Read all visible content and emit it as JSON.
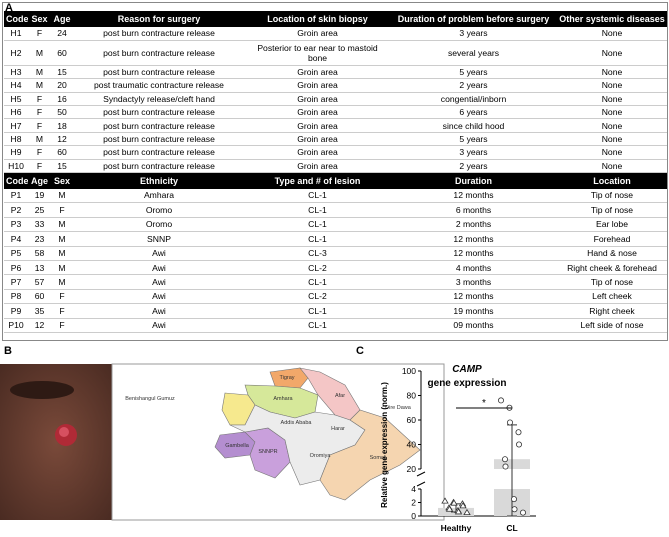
{
  "panels": {
    "a": "A",
    "b": "B",
    "c": "C"
  },
  "tables": [
    {
      "columns": [
        "Code",
        "Sex",
        "Age",
        "Reason for surgery",
        "Location of skin biopsy",
        "Duration of problem before surgery",
        "Other systemic diseases"
      ],
      "rows": [
        [
          "H1",
          "F",
          "24",
          "post burn contracture release",
          "Groin area",
          "3 years",
          "None"
        ],
        [
          "H2",
          "M",
          "60",
          "post burn contracture release",
          "Posterior to ear near to mastoid bone",
          "several years",
          "None"
        ],
        [
          "H3",
          "M",
          "15",
          "post burn contracture release",
          "Groin area",
          "5 years",
          "None"
        ],
        [
          "H4",
          "M",
          "20",
          "post traumatic contracture release",
          "Groin area",
          "2 years",
          "None"
        ],
        [
          "H5",
          "F",
          "16",
          "Syndactyly release/cleft hand",
          "Groin area",
          "congential/inborn",
          "None"
        ],
        [
          "H6",
          "F",
          "50",
          "post burn contracture release",
          "Groin area",
          "6 years",
          "None"
        ],
        [
          "H7",
          "F",
          "18",
          "post burn contracture release",
          "Groin area",
          "since child hood",
          "None"
        ],
        [
          "H8",
          "M",
          "12",
          "post burn contracture release",
          "Groin area",
          "5 years",
          "None"
        ],
        [
          "H9",
          "F",
          "60",
          "post burn contracture release",
          "Groin area",
          "3 years",
          "None"
        ],
        [
          "H10",
          "F",
          "15",
          "post burn contracture release",
          "Groin area",
          "2  years",
          "None"
        ]
      ]
    },
    {
      "columns": [
        "Code",
        "Age",
        "Sex",
        "Ethnicity",
        "Type  and # of lesion",
        "Duration",
        "Location"
      ],
      "rows": [
        [
          "P1",
          "19",
          "M",
          "Amhara",
          "CL-1",
          "12 months",
          "Tip of nose"
        ],
        [
          "P2",
          "25",
          "F",
          "Oromo",
          "CL-1",
          "6 months",
          "Tip of nose"
        ],
        [
          "P3",
          "33",
          "M",
          "Oromo",
          "CL-1",
          "2 months",
          "Ear lobe"
        ],
        [
          "P4",
          "23",
          "M",
          "SNNP",
          "CL-1",
          "12 months",
          "Forehead"
        ],
        [
          "P5",
          "58",
          "M",
          "Awi",
          "CL-3",
          "12 months",
          "Hand & nose"
        ],
        [
          "P6",
          "13",
          "M",
          "Awi",
          "CL-2",
          "4 months",
          "Right cheek &  forehead"
        ],
        [
          "P7",
          "57",
          "M",
          "Awi",
          "CL-1",
          "3 months",
          "Tip of nose"
        ],
        [
          "P8",
          "60",
          "F",
          "Awi",
          "CL-2",
          "12 months",
          "Left cheek"
        ],
        [
          "P9",
          "35",
          "F",
          "Awi",
          "CL-1",
          "19 months",
          "Right cheek"
        ],
        [
          "P10",
          "12",
          "F",
          "Awi",
          "CL-1",
          "09 months",
          "Left side of nose"
        ]
      ]
    }
  ],
  "map": {
    "regions": [
      "Tigray",
      "Afar",
      "Amhara",
      "Benishangul Gumuz",
      "Addis Ababa",
      "Dire Dawa",
      "Harar",
      "Gambella",
      "SNNPR",
      "Oromiya",
      "Somali"
    ]
  },
  "chart_data": {
    "type": "bar",
    "title": "CAMP",
    "subtitle": "gene expression",
    "y_label": "Relative gene expression (norm.)",
    "categories": [
      "Healthy",
      "CL"
    ],
    "values": [
      1.2,
      28
    ],
    "errors": [
      0.6,
      28
    ],
    "color": "#d9d9d9",
    "points": [
      [
        2.2,
        2.0,
        1.9,
        1.8,
        1.5,
        1.2,
        1.0,
        0.8,
        0.6,
        0.5
      ],
      [
        76,
        70,
        58,
        50,
        40,
        28,
        22,
        2.5,
        1.0,
        0.5
      ]
    ],
    "y_segments": [
      {
        "ylim": [
          0,
          4
        ],
        "yticks": [
          0,
          2,
          4
        ]
      },
      {
        "ylim": [
          20,
          100
        ],
        "yticks": [
          20,
          40,
          60,
          80,
          100
        ]
      }
    ],
    "annotation": "*"
  }
}
